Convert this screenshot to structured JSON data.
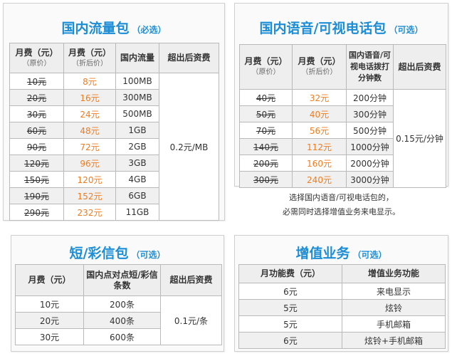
{
  "data_package": {
    "title": "国内流量包",
    "tag": "（必选）",
    "headers": [
      {
        "main": "月费（元）",
        "sub": "（原价）"
      },
      {
        "main": "月费（元）",
        "sub": "（折后价）"
      },
      {
        "main": "国内流量",
        "sub": ""
      },
      {
        "main": "超出后资费",
        "sub": ""
      }
    ],
    "rows": [
      {
        "original": "10元",
        "discount": "8元",
        "quota": "100MB"
      },
      {
        "original": "20元",
        "discount": "16元",
        "quota": "300MB"
      },
      {
        "original": "30元",
        "discount": "24元",
        "quota": "500MB"
      },
      {
        "original": "60元",
        "discount": "48元",
        "quota": "1GB"
      },
      {
        "original": "90元",
        "discount": "72元",
        "quota": "2GB"
      },
      {
        "original": "120元",
        "discount": "96元",
        "quota": "3GB"
      },
      {
        "original": "150元",
        "discount": "120元",
        "quota": "4GB"
      },
      {
        "original": "190元",
        "discount": "152元",
        "quota": "6GB"
      },
      {
        "original": "290元",
        "discount": "232元",
        "quota": "11GB"
      }
    ],
    "overage": "0.2元/MB"
  },
  "voice_package": {
    "title": "国内语音/可视电话包",
    "tag": "（可选）",
    "headers": [
      {
        "main": "月费（元）",
        "sub": "（原价）"
      },
      {
        "main": "月费（元）",
        "sub": "（折后价）"
      },
      {
        "main": "国内语音/可视电话拨打分钟数",
        "sub": ""
      },
      {
        "main": "超出后资费",
        "sub": ""
      }
    ],
    "rows": [
      {
        "original": "40元",
        "discount": "32元",
        "minutes": "200分钟"
      },
      {
        "original": "50元",
        "discount": "40元",
        "minutes": "300分钟"
      },
      {
        "original": "70元",
        "discount": "56元",
        "minutes": "500分钟"
      },
      {
        "original": "140元",
        "discount": "112元",
        "minutes": "1000分钟"
      },
      {
        "original": "200元",
        "discount": "160元",
        "minutes": "2000分钟"
      },
      {
        "original": "300元",
        "discount": "240元",
        "minutes": "3000分钟"
      }
    ],
    "overage": "0.15元/分钟",
    "note_line1": "选择国内语音/可视电话包的，",
    "note_line2": "必需同时选择增值业务来电显示。"
  },
  "sms_package": {
    "title": "短/彩信包",
    "tag": "（可选）",
    "headers": [
      "月费（元）",
      "国内点对点短/彩信条数",
      "超出后资费"
    ],
    "rows": [
      {
        "fee": "10元",
        "count": "200条"
      },
      {
        "fee": "20元",
        "count": "400条"
      },
      {
        "fee": "30元",
        "count": "600条"
      }
    ],
    "overage": "0.1元/条"
  },
  "value_added": {
    "title": "增值业务",
    "tag": "（可选）",
    "headers": [
      "月功能费（元）",
      "增值业务功能"
    ],
    "rows": [
      {
        "fee": "6元",
        "service": "来电显示"
      },
      {
        "fee": "5元",
        "service": "炫铃"
      },
      {
        "fee": "5元",
        "service": "手机邮箱"
      },
      {
        "fee": "6元",
        "service": "炫铃+手机邮箱"
      }
    ]
  }
}
